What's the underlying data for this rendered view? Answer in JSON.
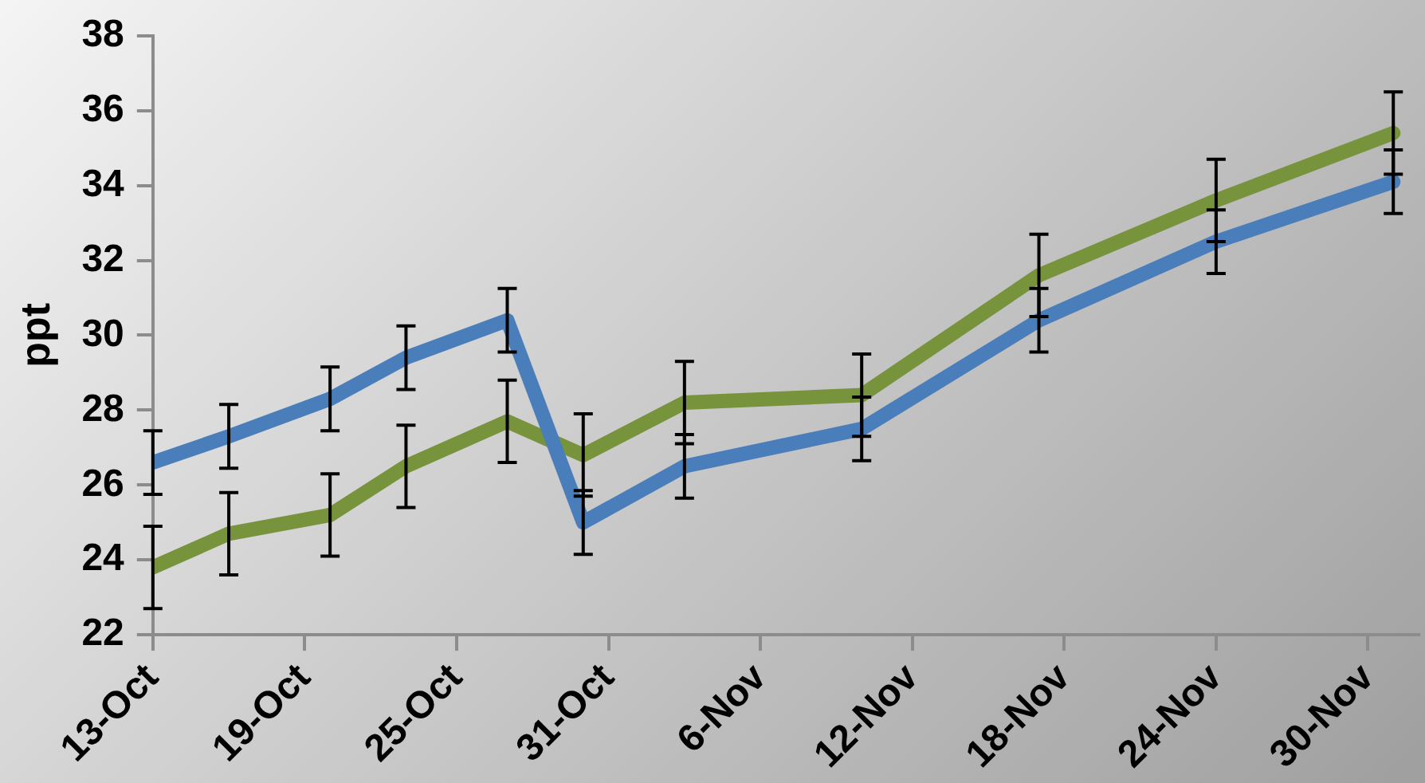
{
  "chart_data": {
    "type": "line",
    "ylabel": "ppt",
    "x": [
      "--10-13",
      "--10-16",
      "--10-20",
      "--10-23",
      "--10-27",
      "--10-30",
      "--11-03",
      "--11-10",
      "--11-17",
      "--11-24",
      "--12-01"
    ],
    "xlim": [
      "--10-13",
      "--12-02"
    ],
    "xticks": [
      {
        "value": "--10-13",
        "label": "13-Oct"
      },
      {
        "value": "--10-19",
        "label": "19-Oct"
      },
      {
        "value": "--10-25",
        "label": "25-Oct"
      },
      {
        "value": "--10-31",
        "label": "31-Oct"
      },
      {
        "value": "--11-06",
        "label": "6-Nov"
      },
      {
        "value": "--11-12",
        "label": "12-Nov"
      },
      {
        "value": "--11-18",
        "label": "18-Nov"
      },
      {
        "value": "--11-24",
        "label": "24-Nov"
      },
      {
        "value": "--11-30",
        "label": "30-Nov"
      }
    ],
    "ylim": [
      22,
      38
    ],
    "yticks": [
      22,
      24,
      26,
      28,
      30,
      32,
      34,
      36,
      38
    ],
    "marker": "none",
    "line_style": "solid",
    "series": [
      {
        "color": "#4a7ebb",
        "values": [
          26.6,
          27.3,
          28.3,
          29.4,
          30.4,
          25.0,
          26.5,
          27.5,
          30.4,
          32.5,
          34.1
        ],
        "errors": [
          0.85,
          0.85,
          0.85,
          0.85,
          0.85,
          0.85,
          0.85,
          0.85,
          0.85,
          0.85,
          0.85
        ]
      },
      {
        "color": "#77933c",
        "values": [
          23.8,
          24.7,
          25.2,
          26.5,
          27.7,
          26.8,
          28.2,
          28.4,
          31.6,
          33.6,
          35.4
        ],
        "errors": [
          1.1,
          1.1,
          1.1,
          1.1,
          1.1,
          1.1,
          1.1,
          1.1,
          1.1,
          1.1,
          1.1
        ]
      }
    ]
  }
}
